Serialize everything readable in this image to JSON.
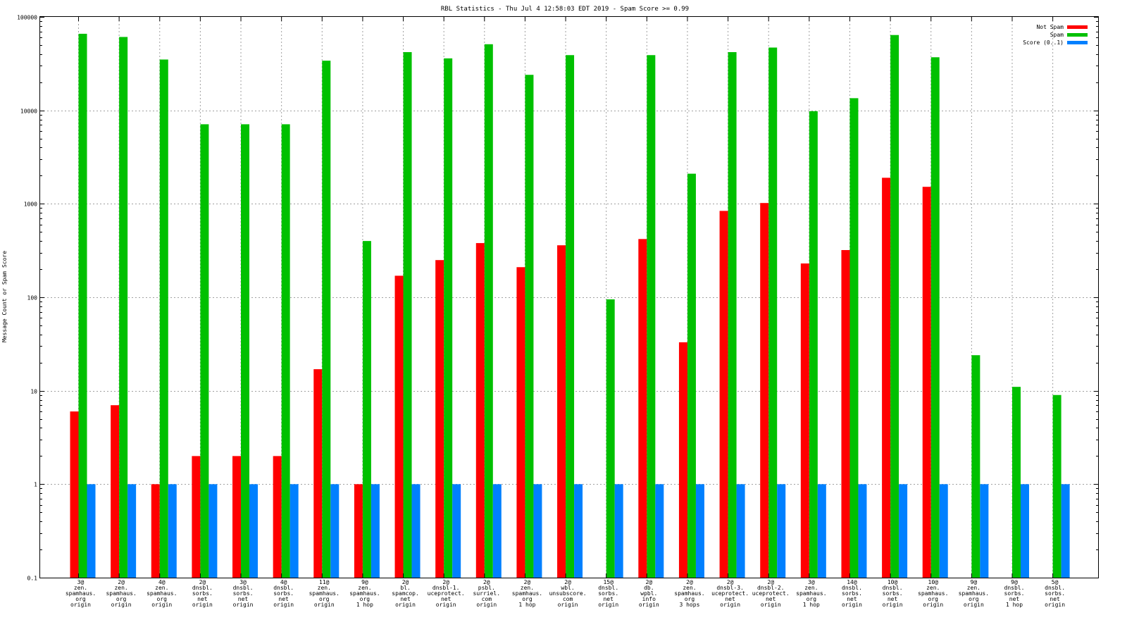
{
  "chart_data": {
    "type": "bar",
    "title": "RBL Statistics - Thu Jul  4 12:58:03 EDT 2019 - Spam Score >= 0.99",
    "xlabel": "",
    "ylabel": "Message Count or Spam Score",
    "yscale": "log",
    "ylim": [
      0.1,
      100000
    ],
    "yticks": [
      0.1,
      1,
      10,
      100,
      1000,
      10000,
      100000
    ],
    "ytick_labels": [
      "0.1",
      "1",
      "10",
      "100",
      "1000",
      "10000",
      "100000"
    ],
    "grid": true,
    "legend_position": "top-right",
    "categories": [
      [
        "3@",
        "zen.",
        "spamhaus.",
        "org",
        "origin"
      ],
      [
        "2@",
        "zen.",
        "spamhaus.",
        "org",
        "origin"
      ],
      [
        "4@",
        "zen.",
        "spamhaus.",
        "org",
        "origin"
      ],
      [
        "2@",
        "dnsbl.",
        "sorbs.",
        "net",
        "origin"
      ],
      [
        "3@",
        "dnsbl.",
        "sorbs.",
        "net",
        "origin"
      ],
      [
        "4@",
        "dnsbl.",
        "sorbs.",
        "net",
        "origin"
      ],
      [
        "11@",
        "zen.",
        "spamhaus.",
        "org",
        "origin"
      ],
      [
        "9@",
        "zen.",
        "spamhaus.",
        "org",
        "1 hop"
      ],
      [
        "2@",
        "bl.",
        "spamcop.",
        "net",
        "origin"
      ],
      [
        "2@",
        "dnsbl-1.",
        "uceprotect.",
        "net",
        "origin"
      ],
      [
        "2@",
        "psbl.",
        "surriel.",
        "com",
        "origin"
      ],
      [
        "2@",
        "zen.",
        "spamhaus.",
        "org",
        "1 hop"
      ],
      [
        "2@",
        "wbl.",
        "unsubscore.",
        "com",
        "origin"
      ],
      [
        "15@",
        "dnsbl.",
        "sorbs.",
        "net",
        "origin"
      ],
      [
        "2@",
        "db.",
        "wpbl.",
        "info",
        "origin"
      ],
      [
        "2@",
        "zen.",
        "spamhaus.",
        "org",
        "3 hops"
      ],
      [
        "2@",
        "dnsbl-3.",
        "uceprotect.",
        "net",
        "origin"
      ],
      [
        "2@",
        "dnsbl-2.",
        "uceprotect.",
        "net",
        "origin"
      ],
      [
        "3@",
        "zen.",
        "spamhaus.",
        "org",
        "1 hop"
      ],
      [
        "14@",
        "dnsbl.",
        "sorbs.",
        "net",
        "origin"
      ],
      [
        "10@",
        "dnsbl.",
        "sorbs.",
        "net",
        "origin"
      ],
      [
        "10@",
        "zen.",
        "spamhaus.",
        "org",
        "origin"
      ],
      [
        "9@",
        "zen.",
        "spamhaus.",
        "org",
        "origin"
      ],
      [
        "9@",
        "dnsbl.",
        "sorbs.",
        "net",
        "1 hop"
      ],
      [
        "5@",
        "dnsbl.",
        "sorbs.",
        "net",
        "origin"
      ]
    ],
    "series": [
      {
        "name": "Not Spam",
        "color": "#ff0000",
        "values": [
          6,
          7,
          1,
          2,
          2,
          2,
          17,
          1,
          170,
          250,
          380,
          210,
          360,
          null,
          420,
          33,
          840,
          1020,
          230,
          320,
          1900,
          1520,
          null,
          null,
          null
        ]
      },
      {
        "name": "Spam",
        "color": "#00c000",
        "values": [
          66000,
          61000,
          35000,
          7100,
          7100,
          7100,
          34000,
          400,
          42000,
          36000,
          51000,
          24000,
          39000,
          95,
          39000,
          2100,
          42000,
          47000,
          9800,
          13500,
          64000,
          37000,
          24,
          11,
          9
        ]
      },
      {
        "name": "Score (0..1)",
        "color": "#0080ff",
        "values": [
          1,
          1,
          1,
          1,
          1,
          1,
          1,
          1,
          1,
          1,
          1,
          1,
          1,
          1,
          1,
          1,
          1,
          1,
          1,
          1,
          1,
          1,
          1,
          1,
          1
        ]
      }
    ]
  }
}
